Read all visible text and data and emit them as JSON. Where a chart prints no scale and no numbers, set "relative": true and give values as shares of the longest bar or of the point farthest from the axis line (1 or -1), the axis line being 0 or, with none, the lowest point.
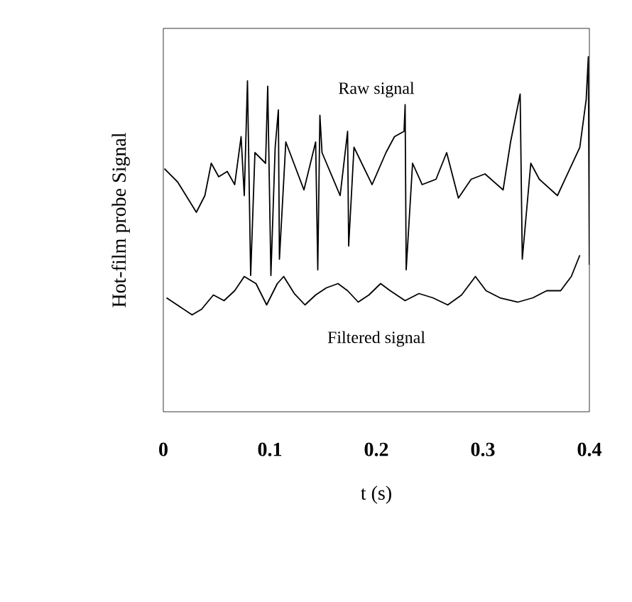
{
  "chart_data": {
    "type": "line",
    "xlabel": "t (s)",
    "ylabel": "Hot-film probe Signal",
    "relative": true,
    "xlim": [
      0,
      0.4
    ],
    "xticks": [
      0,
      0.1,
      0.2,
      0.3,
      0.4
    ],
    "grid": false,
    "legend": false,
    "marker": "none",
    "line_style": "solid",
    "series": [
      {
        "name": "Raw signal",
        "color": "#000000",
        "x": [
          0.001,
          0.0135,
          0.031,
          0.039,
          0.045,
          0.052,
          0.06,
          0.067,
          0.073,
          0.076,
          0.079,
          0.082,
          0.086,
          0.096,
          0.098,
          0.101,
          0.105,
          0.108,
          0.109,
          0.115,
          0.132,
          0.143,
          0.145,
          0.147,
          0.149,
          0.166,
          0.173,
          0.174,
          0.179,
          0.196,
          0.209,
          0.217,
          0.226,
          0.227,
          0.228,
          0.234,
          0.243,
          0.256,
          0.266,
          0.277,
          0.289,
          0.302,
          0.319,
          0.326,
          0.335,
          0.337,
          0.345,
          0.353,
          0.37,
          0.391,
          0.397,
          0.399,
          0.4
        ],
        "values": [
          0.685,
          0.647,
          0.562,
          0.609,
          0.7,
          0.662,
          0.677,
          0.64,
          0.775,
          0.609,
          0.932,
          0.384,
          0.73,
          0.7,
          0.917,
          0.384,
          0.745,
          0.85,
          0.43,
          0.76,
          0.625,
          0.76,
          0.4,
          0.835,
          0.73,
          0.609,
          0.79,
          0.467,
          0.745,
          0.64,
          0.73,
          0.775,
          0.79,
          0.865,
          0.4,
          0.7,
          0.64,
          0.655,
          0.73,
          0.602,
          0.655,
          0.67,
          0.625,
          0.76,
          0.895,
          0.43,
          0.7,
          0.655,
          0.609,
          0.745,
          0.88,
          1.0,
          0.414
        ]
      },
      {
        "name": "Filtered signal",
        "color": "#000000",
        "x": [
          0.003,
          0.013,
          0.027,
          0.036,
          0.047,
          0.057,
          0.067,
          0.076,
          0.087,
          0.097,
          0.107,
          0.113,
          0.123,
          0.133,
          0.143,
          0.153,
          0.164,
          0.173,
          0.183,
          0.193,
          0.204,
          0.213,
          0.227,
          0.24,
          0.253,
          0.267,
          0.28,
          0.293,
          0.303,
          0.316,
          0.333,
          0.347,
          0.36,
          0.373,
          0.383,
          0.391
        ],
        "values": [
          0.321,
          0.301,
          0.273,
          0.289,
          0.329,
          0.313,
          0.341,
          0.381,
          0.361,
          0.301,
          0.361,
          0.381,
          0.333,
          0.301,
          0.329,
          0.349,
          0.361,
          0.341,
          0.309,
          0.329,
          0.361,
          0.341,
          0.313,
          0.333,
          0.321,
          0.301,
          0.329,
          0.381,
          0.341,
          0.321,
          0.309,
          0.321,
          0.341,
          0.341,
          0.381,
          0.441
        ]
      }
    ]
  }
}
